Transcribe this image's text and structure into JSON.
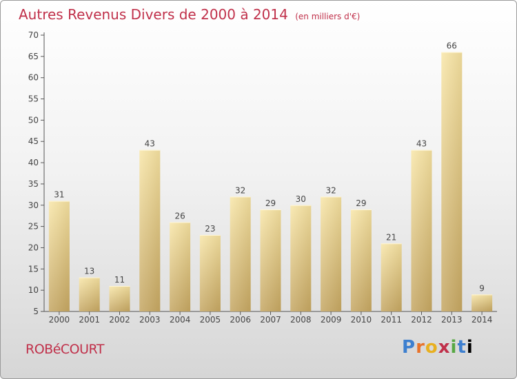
{
  "title": "Autres Revenus Divers de 2000 à 2014",
  "subtitle": "(en milliers d'€)",
  "commune": "ROBéCOURT",
  "logo": "Proxiti",
  "colors": {
    "title": "#c0304a",
    "bar_light": "#f7e3a3",
    "bar_dark": "#c6a865"
  },
  "chart_data": {
    "type": "bar",
    "categories": [
      "2000",
      "2001",
      "2002",
      "2003",
      "2004",
      "2005",
      "2006",
      "2007",
      "2008",
      "2009",
      "2010",
      "2011",
      "2012",
      "2013",
      "2014"
    ],
    "values": [
      31,
      13,
      11,
      43,
      26,
      23,
      32,
      29,
      30,
      32,
      29,
      21,
      43,
      66,
      9
    ],
    "title": "Autres Revenus Divers de 2000 à 2014",
    "subtitle": "(en milliers d'€)",
    "ylim": [
      5,
      70
    ],
    "yticks": [
      5,
      10,
      15,
      20,
      25,
      30,
      35,
      40,
      45,
      50,
      55,
      60,
      65,
      70
    ],
    "grid": false,
    "legend": "none"
  }
}
